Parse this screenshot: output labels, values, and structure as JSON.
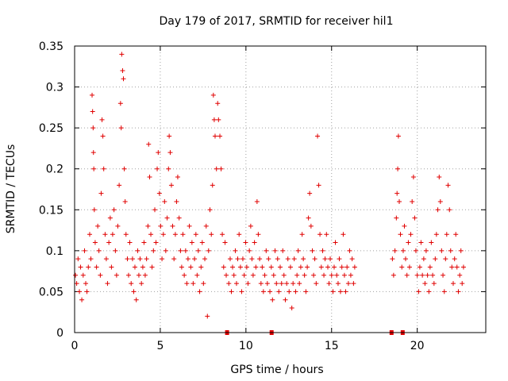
{
  "chart_data": {
    "type": "scatter",
    "title": "Day 179 of 2017, SRMTID for receiver hil1",
    "xlabel": "GPS time / hours",
    "ylabel": "SRMTID / TECUs",
    "xlim": [
      0,
      24
    ],
    "ylim": [
      0,
      0.35
    ],
    "x_ticks": [
      0,
      5,
      10,
      15,
      20
    ],
    "x_tick_labels": [
      "0",
      "5",
      "10",
      "15",
      "20"
    ],
    "y_ticks": [
      0,
      0.05,
      0.1,
      0.15,
      0.2,
      0.25,
      0.3,
      0.35
    ],
    "y_tick_labels": [
      "0",
      "0.05",
      "0.1",
      "0.15",
      "0.2",
      "0.25",
      "0.3",
      "0.35"
    ],
    "grid": true,
    "marker": "+",
    "color": "#e00000",
    "series": [
      {
        "name": "SRMTID",
        "points": [
          [
            0.05,
            0.07
          ],
          [
            0.12,
            0.06
          ],
          [
            0.2,
            0.09
          ],
          [
            0.28,
            0.05
          ],
          [
            0.35,
            0.08
          ],
          [
            0.42,
            0.04
          ],
          [
            0.5,
            0.07
          ],
          [
            0.58,
            0.1
          ],
          [
            0.65,
            0.06
          ],
          [
            0.72,
            0.05
          ],
          [
            0.8,
            0.08
          ],
          [
            0.88,
            0.12
          ],
          [
            0.95,
            0.09
          ],
          [
            1.02,
            0.29
          ],
          [
            1.05,
            0.27
          ],
          [
            1.08,
            0.25
          ],
          [
            1.1,
            0.22
          ],
          [
            1.12,
            0.2
          ],
          [
            1.15,
            0.15
          ],
          [
            1.2,
            0.11
          ],
          [
            1.28,
            0.08
          ],
          [
            1.35,
            0.13
          ],
          [
            1.42,
            0.1
          ],
          [
            1.5,
            0.07
          ],
          [
            1.55,
            0.17
          ],
          [
            1.6,
            0.26
          ],
          [
            1.65,
            0.24
          ],
          [
            1.7,
            0.2
          ],
          [
            1.78,
            0.12
          ],
          [
            1.85,
            0.09
          ],
          [
            1.92,
            0.06
          ],
          [
            2.0,
            0.11
          ],
          [
            2.08,
            0.14
          ],
          [
            2.15,
            0.08
          ],
          [
            2.22,
            0.12
          ],
          [
            2.3,
            0.15
          ],
          [
            2.38,
            0.1
          ],
          [
            2.45,
            0.07
          ],
          [
            2.52,
            0.13
          ],
          [
            2.6,
            0.18
          ],
          [
            2.68,
            0.28
          ],
          [
            2.72,
            0.25
          ],
          [
            2.75,
            0.34
          ],
          [
            2.8,
            0.32
          ],
          [
            2.85,
            0.31
          ],
          [
            2.9,
            0.2
          ],
          [
            2.95,
            0.16
          ],
          [
            3.0,
            0.12
          ],
          [
            3.08,
            0.09
          ],
          [
            3.15,
            0.07
          ],
          [
            3.22,
            0.11
          ],
          [
            3.3,
            0.06
          ],
          [
            3.38,
            0.09
          ],
          [
            3.45,
            0.05
          ],
          [
            3.52,
            0.08
          ],
          [
            3.6,
            0.04
          ],
          [
            3.68,
            0.1
          ],
          [
            3.75,
            0.07
          ],
          [
            3.82,
            0.09
          ],
          [
            3.9,
            0.06
          ],
          [
            3.98,
            0.08
          ],
          [
            4.05,
            0.11
          ],
          [
            4.12,
            0.07
          ],
          [
            4.2,
            0.09
          ],
          [
            4.28,
            0.13
          ],
          [
            4.32,
            0.23
          ],
          [
            4.38,
            0.19
          ],
          [
            4.45,
            0.12
          ],
          [
            4.52,
            0.08
          ],
          [
            4.6,
            0.1
          ],
          [
            4.68,
            0.15
          ],
          [
            4.75,
            0.11
          ],
          [
            4.82,
            0.2
          ],
          [
            4.88,
            0.22
          ],
          [
            4.95,
            0.17
          ],
          [
            5.02,
            0.13
          ],
          [
            5.1,
            0.09
          ],
          [
            5.18,
            0.12
          ],
          [
            5.25,
            0.16
          ],
          [
            5.32,
            0.1
          ],
          [
            5.4,
            0.14
          ],
          [
            5.48,
            0.2
          ],
          [
            5.52,
            0.24
          ],
          [
            5.58,
            0.22
          ],
          [
            5.65,
            0.18
          ],
          [
            5.72,
            0.13
          ],
          [
            5.8,
            0.09
          ],
          [
            5.88,
            0.12
          ],
          [
            5.95,
            0.16
          ],
          [
            6.02,
            0.19
          ],
          [
            6.1,
            0.14
          ],
          [
            6.18,
            0.1
          ],
          [
            6.25,
            0.08
          ],
          [
            6.32,
            0.12
          ],
          [
            6.4,
            0.07
          ],
          [
            6.48,
            0.1
          ],
          [
            6.55,
            0.06
          ],
          [
            6.62,
            0.09
          ],
          [
            6.7,
            0.13
          ],
          [
            6.78,
            0.08
          ],
          [
            6.85,
            0.11
          ],
          [
            6.92,
            0.06
          ],
          [
            7.0,
            0.09
          ],
          [
            7.08,
            0.12
          ],
          [
            7.15,
            0.07
          ],
          [
            7.22,
            0.1
          ],
          [
            7.3,
            0.05
          ],
          [
            7.38,
            0.08
          ],
          [
            7.45,
            0.11
          ],
          [
            7.52,
            0.06
          ],
          [
            7.6,
            0.09
          ],
          [
            7.68,
            0.13
          ],
          [
            7.75,
            0.02
          ],
          [
            7.82,
            0.1
          ],
          [
            7.9,
            0.15
          ],
          [
            7.98,
            0.12
          ],
          [
            8.05,
            0.18
          ],
          [
            8.1,
            0.29
          ],
          [
            8.15,
            0.26
          ],
          [
            8.2,
            0.24
          ],
          [
            8.28,
            0.2
          ],
          [
            8.35,
            0.28
          ],
          [
            8.4,
            0.26
          ],
          [
            8.48,
            0.24
          ],
          [
            8.55,
            0.2
          ],
          [
            8.62,
            0.12
          ],
          [
            8.7,
            0.08
          ],
          [
            8.78,
            0.11
          ],
          [
            8.85,
            0.07
          ],
          [
            9.0,
            0.06
          ],
          [
            9.08,
            0.09
          ],
          [
            9.15,
            0.05
          ],
          [
            9.22,
            0.08
          ],
          [
            9.3,
            0.07
          ],
          [
            9.38,
            0.1
          ],
          [
            9.45,
            0.06
          ],
          [
            9.52,
            0.09
          ],
          [
            9.6,
            0.12
          ],
          [
            9.68,
            0.08
          ],
          [
            9.75,
            0.05
          ],
          [
            9.82,
            0.09
          ],
          [
            9.9,
            0.07
          ],
          [
            9.98,
            0.11
          ],
          [
            10.05,
            0.08
          ],
          [
            10.12,
            0.06
          ],
          [
            10.2,
            0.1
          ],
          [
            10.28,
            0.13
          ],
          [
            10.35,
            0.09
          ],
          [
            10.42,
            0.07
          ],
          [
            10.5,
            0.11
          ],
          [
            10.58,
            0.08
          ],
          [
            10.65,
            0.16
          ],
          [
            10.72,
            0.12
          ],
          [
            10.8,
            0.09
          ],
          [
            10.88,
            0.06
          ],
          [
            10.95,
            0.08
          ],
          [
            11.02,
            0.05
          ],
          [
            11.1,
            0.07
          ],
          [
            11.18,
            0.1
          ],
          [
            11.25,
            0.06
          ],
          [
            11.32,
            0.09
          ],
          [
            11.4,
            0.05
          ],
          [
            11.48,
            0.08
          ],
          [
            11.55,
            0.04
          ],
          [
            11.62,
            0.07
          ],
          [
            11.7,
            0.1
          ],
          [
            11.78,
            0.06
          ],
          [
            11.85,
            0.09
          ],
          [
            11.92,
            0.05
          ],
          [
            12.0,
            0.08
          ],
          [
            12.08,
            0.06
          ],
          [
            12.15,
            0.1
          ],
          [
            12.22,
            0.07
          ],
          [
            12.3,
            0.04
          ],
          [
            12.38,
            0.06
          ],
          [
            12.45,
            0.09
          ],
          [
            12.52,
            0.05
          ],
          [
            12.6,
            0.08
          ],
          [
            12.68,
            0.03
          ],
          [
            12.75,
            0.06
          ],
          [
            12.82,
            0.09
          ],
          [
            12.9,
            0.05
          ],
          [
            12.98,
            0.07
          ],
          [
            13.05,
            0.1
          ],
          [
            13.12,
            0.06
          ],
          [
            13.2,
            0.08
          ],
          [
            13.28,
            0.12
          ],
          [
            13.35,
            0.09
          ],
          [
            13.42,
            0.07
          ],
          [
            13.5,
            0.05
          ],
          [
            13.58,
            0.08
          ],
          [
            13.65,
            0.14
          ],
          [
            13.72,
            0.17
          ],
          [
            13.8,
            0.13
          ],
          [
            13.88,
            0.1
          ],
          [
            13.95,
            0.07
          ],
          [
            14.02,
            0.09
          ],
          [
            14.1,
            0.06
          ],
          [
            14.18,
            0.24
          ],
          [
            14.25,
            0.18
          ],
          [
            14.32,
            0.12
          ],
          [
            14.4,
            0.08
          ],
          [
            14.48,
            0.1
          ],
          [
            14.55,
            0.07
          ],
          [
            14.62,
            0.09
          ],
          [
            14.7,
            0.12
          ],
          [
            14.78,
            0.08
          ],
          [
            14.85,
            0.06
          ],
          [
            14.92,
            0.09
          ],
          [
            15.0,
            0.07
          ],
          [
            15.08,
            0.05
          ],
          [
            15.15,
            0.08
          ],
          [
            15.22,
            0.11
          ],
          [
            15.3,
            0.07
          ],
          [
            15.38,
            0.06
          ],
          [
            15.45,
            0.09
          ],
          [
            15.52,
            0.05
          ],
          [
            15.6,
            0.08
          ],
          [
            15.68,
            0.12
          ],
          [
            15.75,
            0.07
          ],
          [
            15.82,
            0.05
          ],
          [
            15.9,
            0.08
          ],
          [
            15.98,
            0.06
          ],
          [
            16.05,
            0.1
          ],
          [
            16.12,
            0.07
          ],
          [
            16.2,
            0.09
          ],
          [
            16.28,
            0.06
          ],
          [
            16.35,
            0.08
          ],
          [
            18.55,
            0.09
          ],
          [
            18.62,
            0.07
          ],
          [
            18.7,
            0.1
          ],
          [
            18.78,
            0.14
          ],
          [
            18.82,
            0.17
          ],
          [
            18.86,
            0.2
          ],
          [
            18.9,
            0.24
          ],
          [
            18.95,
            0.16
          ],
          [
            19.02,
            0.12
          ],
          [
            19.1,
            0.08
          ],
          [
            19.18,
            0.1
          ],
          [
            19.25,
            0.13
          ],
          [
            19.32,
            0.09
          ],
          [
            19.4,
            0.07
          ],
          [
            19.48,
            0.11
          ],
          [
            19.55,
            0.08
          ],
          [
            19.62,
            0.12
          ],
          [
            19.7,
            0.16
          ],
          [
            19.78,
            0.19
          ],
          [
            19.85,
            0.14
          ],
          [
            19.92,
            0.1
          ],
          [
            20.0,
            0.07
          ],
          [
            20.08,
            0.05
          ],
          [
            20.15,
            0.08
          ],
          [
            20.22,
            0.11
          ],
          [
            20.3,
            0.07
          ],
          [
            20.38,
            0.09
          ],
          [
            20.45,
            0.06
          ],
          [
            20.52,
            0.1
          ],
          [
            20.6,
            0.07
          ],
          [
            20.68,
            0.05
          ],
          [
            20.75,
            0.08
          ],
          [
            20.82,
            0.11
          ],
          [
            20.9,
            0.07
          ],
          [
            20.98,
            0.06
          ],
          [
            21.05,
            0.09
          ],
          [
            21.12,
            0.12
          ],
          [
            21.2,
            0.15
          ],
          [
            21.28,
            0.19
          ],
          [
            21.35,
            0.16
          ],
          [
            21.42,
            0.1
          ],
          [
            21.5,
            0.07
          ],
          [
            21.58,
            0.05
          ],
          [
            21.65,
            0.09
          ],
          [
            21.72,
            0.12
          ],
          [
            21.8,
            0.18
          ],
          [
            21.88,
            0.15
          ],
          [
            21.95,
            0.1
          ],
          [
            22.02,
            0.08
          ],
          [
            22.1,
            0.06
          ],
          [
            22.18,
            0.09
          ],
          [
            22.25,
            0.12
          ],
          [
            22.32,
            0.08
          ],
          [
            22.4,
            0.05
          ],
          [
            22.48,
            0.07
          ],
          [
            22.55,
            0.1
          ],
          [
            22.62,
            0.06
          ],
          [
            22.7,
            0.08
          ]
        ]
      }
    ],
    "gap_markers_x": [
      8.9,
      11.5,
      18.5,
      19.15
    ]
  }
}
